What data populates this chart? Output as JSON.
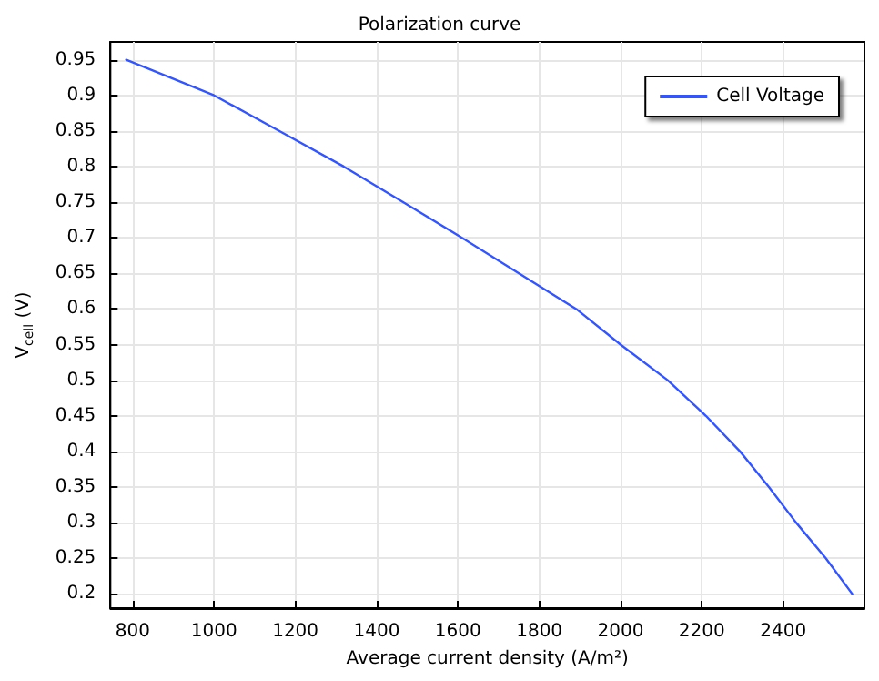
{
  "chart_data": {
    "type": "line",
    "title": "Polarization curve",
    "xlabel": "Average current density (A/m²)",
    "ylabel": "V$_{cell}$ (V)",
    "x": [
      784,
      1000,
      1160,
      1319,
      1465,
      1610,
      1750,
      1891,
      2000,
      2116,
      2210,
      2294,
      2365,
      2432,
      2505,
      2570
    ],
    "series": [
      {
        "name": "Cell Voltage",
        "color": "#3355ff",
        "values": [
          0.95,
          0.9,
          0.85,
          0.8,
          0.75,
          0.7,
          0.65,
          0.6,
          0.55,
          0.5,
          0.45,
          0.4,
          0.35,
          0.3,
          0.25,
          0.2
        ]
      }
    ],
    "xlim": [
      745,
      2600
    ],
    "xticks": [
      800,
      1000,
      1200,
      1400,
      1600,
      1800,
      2000,
      2200,
      2400
    ],
    "ylim": [
      0.18,
      0.975
    ],
    "yticks": [
      0.2,
      0.25,
      0.3,
      0.35,
      0.4,
      0.45,
      0.5,
      0.55,
      0.6,
      0.65,
      0.7,
      0.75,
      0.8,
      0.85,
      0.9,
      0.95
    ],
    "grid": true,
    "legend": "top right",
    "marker": "none",
    "line_style": "solid"
  }
}
